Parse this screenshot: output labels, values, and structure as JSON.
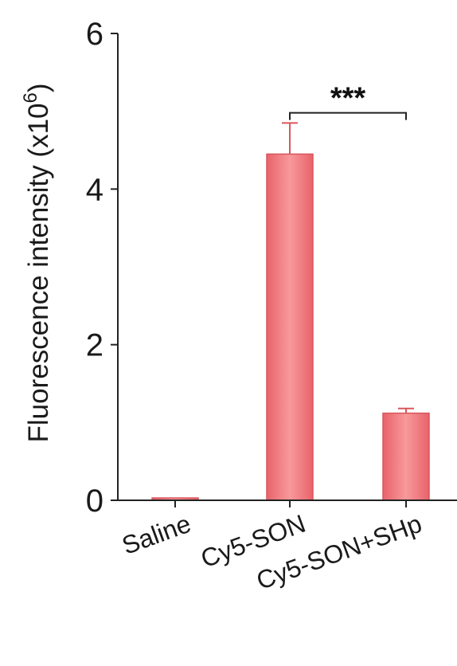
{
  "chart_data": {
    "type": "bar",
    "categories": [
      "Saline",
      "Cy5-SON",
      "Cy5-SON+SHp"
    ],
    "values": [
      0.0,
      4.45,
      1.12
    ],
    "errors": [
      0.0,
      0.4,
      0.06
    ],
    "ylabel": "Fluorescence intensity (x10",
    "ylabel_exponent": "6",
    "ylabel_suffix": ")",
    "ylim": [
      0,
      6
    ],
    "yticks": [
      "0",
      "2",
      "4",
      "6"
    ],
    "significance": {
      "from": "Cy5-SON",
      "to": "Cy5-SON+SHp",
      "label": "***"
    },
    "bar_color": "#f0787c",
    "bar_edge_color": "#d9565c",
    "grid": false,
    "legend": "none"
  }
}
